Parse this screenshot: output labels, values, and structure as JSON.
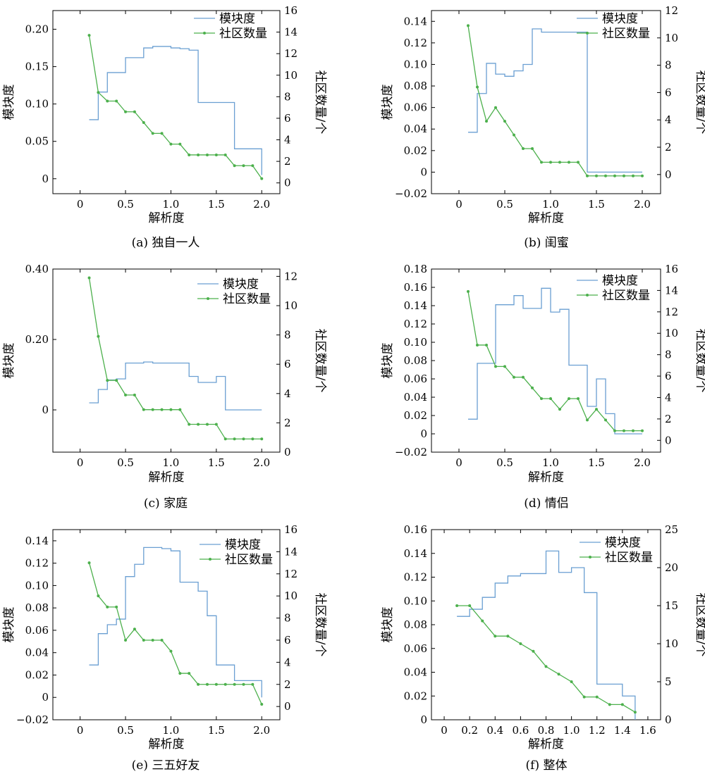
{
  "colors": {
    "modularity": "#6a9fd2",
    "communities": "#4cb04c",
    "axis": "#000000"
  },
  "chart_data": [
    {
      "type": "line",
      "caption": "(a) 独自一人",
      "xlabel": "解析度",
      "ylabel_left": "模块度",
      "ylabel_right": "社区数量/个",
      "xlim": [
        -0.3,
        2.2
      ],
      "ylim_left": [
        -0.02,
        0.225
      ],
      "ylim_right": [
        -1.0,
        16
      ],
      "xticks": [
        0,
        0.5,
        1.0,
        1.5,
        2.0
      ],
      "xtick_labels": [
        "0",
        "0.5",
        "1.0",
        "1.5",
        "2.0"
      ],
      "yticks_left": [
        0,
        0.05,
        0.1,
        0.15,
        0.2
      ],
      "ytick_labels_left": [
        "0",
        "0.05",
        "0.10",
        "0.15",
        "0.20"
      ],
      "yticks_right": [
        0,
        2,
        4,
        6,
        8,
        10,
        12,
        14,
        16
      ],
      "ytick_labels_right": [
        "0",
        "2",
        "4",
        "6",
        "8",
        "10",
        "12",
        "14",
        "16"
      ],
      "legend": [
        "模块度",
        "社区数量"
      ],
      "x": [
        0.1,
        0.2,
        0.3,
        0.4,
        0.5,
        0.6,
        0.7,
        0.8,
        0.9,
        1.0,
        1.1,
        1.2,
        1.3,
        1.4,
        1.5,
        1.6,
        1.7,
        1.8,
        1.9,
        2.0
      ],
      "series": [
        {
          "name": "模块度",
          "style": "step",
          "axis": "left",
          "values": [
            0.079,
            0.116,
            0.142,
            0.142,
            0.162,
            0.162,
            0.175,
            0.177,
            0.177,
            0.175,
            0.174,
            0.172,
            0.102,
            0.102,
            0.102,
            0.102,
            0.04,
            0.04,
            0.04,
            0.005
          ]
        },
        {
          "name": "社区数量",
          "style": "line-marker",
          "axis": "right",
          "values": [
            13.7,
            8.4,
            7.6,
            7.6,
            6.6,
            6.6,
            5.6,
            4.6,
            4.6,
            3.6,
            3.6,
            2.6,
            2.6,
            2.6,
            2.6,
            2.6,
            1.6,
            1.6,
            1.6,
            0.4
          ]
        }
      ]
    },
    {
      "type": "line",
      "caption": "(b) 闺蜜",
      "xlabel": "解析度",
      "ylabel_left": "模块度",
      "ylabel_right": "社区数量/个",
      "xlim": [
        -0.3,
        2.2
      ],
      "ylim_left": [
        -0.02,
        0.15
      ],
      "ylim_right": [
        -1.4,
        12
      ],
      "xticks": [
        0,
        0.5,
        1.0,
        1.5,
        2.0
      ],
      "xtick_labels": [
        "0",
        "0.5",
        "1.0",
        "1.5",
        "2.0"
      ],
      "yticks_left": [
        -0.02,
        0,
        0.02,
        0.04,
        0.06,
        0.08,
        0.1,
        0.12,
        0.14
      ],
      "ytick_labels_left": [
        "−0.02",
        "0",
        "0.02",
        "0.04",
        "0.06",
        "0.08",
        "0.10",
        "0.12",
        "0.14"
      ],
      "yticks_right": [
        0,
        2,
        4,
        6,
        8,
        10,
        12
      ],
      "ytick_labels_right": [
        "0",
        "2",
        "4",
        "6",
        "8",
        "10",
        "12"
      ],
      "legend": [
        "模块度",
        "社区数量"
      ],
      "x": [
        0.1,
        0.2,
        0.3,
        0.4,
        0.5,
        0.6,
        0.7,
        0.8,
        0.9,
        1.0,
        1.1,
        1.2,
        1.3,
        1.4,
        1.5,
        1.6,
        1.7,
        1.8,
        1.9,
        2.0
      ],
      "series": [
        {
          "name": "模块度",
          "style": "step",
          "axis": "left",
          "values": [
            0.037,
            0.073,
            0.101,
            0.091,
            0.089,
            0.094,
            0.1,
            0.133,
            0.13,
            0.13,
            0.13,
            0.13,
            0.13,
            0.0,
            0.0,
            0.0,
            0.0,
            0.0,
            0.0,
            0.0
          ]
        },
        {
          "name": "社区数量",
          "style": "line-marker",
          "axis": "right",
          "values": [
            10.9,
            6.4,
            3.9,
            4.9,
            3.9,
            2.9,
            1.9,
            1.9,
            0.9,
            0.9,
            0.9,
            0.9,
            0.9,
            -0.1,
            -0.1,
            -0.1,
            -0.1,
            -0.1,
            -0.1,
            -0.1
          ]
        }
      ]
    },
    {
      "type": "line",
      "caption": "(c) 家庭",
      "xlabel": "解析度",
      "ylabel_left": "模块度",
      "ylabel_right": "社区数量/个",
      "xlim": [
        -0.3,
        2.2
      ],
      "ylim_left": [
        -0.12,
        0.4
      ],
      "ylim_right": [
        0,
        12.5
      ],
      "xticks": [
        0,
        0.5,
        1.0,
        1.5,
        2.0
      ],
      "xtick_labels": [
        "0",
        "0.5",
        "1.0",
        "1.5",
        "2.0"
      ],
      "yticks_left": [
        0,
        0.2,
        0.4
      ],
      "ytick_labels_left": [
        "0",
        "0.20",
        "0.40"
      ],
      "yticks_right": [
        0,
        2,
        4,
        6,
        8,
        10,
        12
      ],
      "ytick_labels_right": [
        "0",
        "2",
        "4",
        "6",
        "8",
        "10",
        "12"
      ],
      "legend": [
        "模块度",
        "社区数量"
      ],
      "x": [
        0.1,
        0.2,
        0.3,
        0.4,
        0.5,
        0.6,
        0.7,
        0.8,
        0.9,
        1.0,
        1.1,
        1.2,
        1.3,
        1.4,
        1.5,
        1.6,
        1.7,
        1.8,
        1.9,
        2.0
      ],
      "series": [
        {
          "name": "模块度",
          "style": "step",
          "axis": "left",
          "values": [
            0.02,
            0.058,
            0.085,
            0.088,
            0.133,
            0.133,
            0.136,
            0.133,
            0.133,
            0.133,
            0.133,
            0.095,
            0.078,
            0.078,
            0.095,
            0.0,
            0.0,
            0.0,
            0.0,
            0.0
          ]
        },
        {
          "name": "社区数量",
          "style": "line-marker",
          "axis": "right",
          "values": [
            11.9,
            7.9,
            4.9,
            4.9,
            3.9,
            3.9,
            2.9,
            2.9,
            2.9,
            2.9,
            2.9,
            1.9,
            1.9,
            1.9,
            1.9,
            0.9,
            0.9,
            0.9,
            0.9,
            0.9
          ]
        }
      ]
    },
    {
      "type": "line",
      "caption": "(d) 情侣",
      "xlabel": "解析度",
      "ylabel_left": "模块度",
      "ylabel_right": "社区数量/个",
      "xlim": [
        -0.3,
        2.2
      ],
      "ylim_left": [
        -0.02,
        0.18
      ],
      "ylim_right": [
        -1.1,
        16
      ],
      "xticks": [
        0,
        0.5,
        1.0,
        1.5,
        2.0
      ],
      "xtick_labels": [
        "0",
        "0.5",
        "1.0",
        "1.5",
        "2.0"
      ],
      "yticks_left": [
        -0.02,
        0,
        0.02,
        0.04,
        0.06,
        0.08,
        0.1,
        0.12,
        0.14,
        0.16,
        0.18
      ],
      "ytick_labels_left": [
        "−0.02",
        "0",
        "0.02",
        "0.04",
        "0.06",
        "0.08",
        "0.10",
        "0.12",
        "0.14",
        "0.16",
        "0.18"
      ],
      "yticks_right": [
        0,
        2,
        4,
        6,
        8,
        10,
        12,
        14,
        16
      ],
      "ytick_labels_right": [
        "0",
        "2",
        "4",
        "6",
        "8",
        "10",
        "12",
        "14",
        "16"
      ],
      "legend": [
        "模块度",
        "社区数量"
      ],
      "x": [
        0.1,
        0.2,
        0.3,
        0.4,
        0.5,
        0.6,
        0.7,
        0.8,
        0.9,
        1.0,
        1.1,
        1.2,
        1.3,
        1.4,
        1.5,
        1.6,
        1.7,
        1.8,
        1.9,
        2.0
      ],
      "series": [
        {
          "name": "模块度",
          "style": "step",
          "axis": "left",
          "values": [
            0.016,
            0.077,
            0.077,
            0.141,
            0.141,
            0.151,
            0.137,
            0.137,
            0.159,
            0.133,
            0.136,
            0.075,
            0.075,
            0.03,
            0.06,
            0.022,
            0.0,
            0.0,
            0.0,
            0.0
          ]
        },
        {
          "name": "社区数量",
          "style": "line-marker",
          "axis": "right",
          "values": [
            13.9,
            8.9,
            8.9,
            6.9,
            6.9,
            5.9,
            5.9,
            4.9,
            3.9,
            3.9,
            2.9,
            3.9,
            3.9,
            1.9,
            2.9,
            1.9,
            0.9,
            0.9,
            0.9,
            0.9
          ]
        }
      ]
    },
    {
      "type": "line",
      "caption": "(e) 三五好友",
      "xlabel": "解析度",
      "ylabel_left": "模块度",
      "ylabel_right": "社区数量/个",
      "xlim": [
        -0.3,
        2.2
      ],
      "ylim_left": [
        -0.02,
        0.15
      ],
      "ylim_right": [
        -1.2,
        16
      ],
      "xticks": [
        0,
        0.5,
        1.0,
        1.5,
        2.0
      ],
      "xtick_labels": [
        "0",
        "0.5",
        "1.0",
        "1.5",
        "2.0"
      ],
      "yticks_left": [
        -0.02,
        0,
        0.02,
        0.04,
        0.06,
        0.08,
        0.1,
        0.12,
        0.14
      ],
      "ytick_labels_left": [
        "−0.02",
        "0",
        "0.02",
        "0.04",
        "0.06",
        "0.08",
        "0.10",
        "0.12",
        "0.14"
      ],
      "yticks_right": [
        0,
        2,
        4,
        6,
        8,
        10,
        12,
        14,
        16
      ],
      "ytick_labels_right": [
        "0",
        "2",
        "4",
        "6",
        "8",
        "10",
        "12",
        "14",
        "16"
      ],
      "legend": [
        "模块度",
        "社区数量"
      ],
      "x": [
        0.1,
        0.2,
        0.3,
        0.4,
        0.5,
        0.6,
        0.7,
        0.8,
        0.9,
        1.0,
        1.1,
        1.2,
        1.3,
        1.4,
        1.5,
        1.6,
        1.7,
        1.8,
        1.9,
        2.0
      ],
      "series": [
        {
          "name": "模块度",
          "style": "step",
          "axis": "left",
          "values": [
            0.029,
            0.057,
            0.065,
            0.07,
            0.108,
            0.119,
            0.134,
            0.134,
            0.133,
            0.131,
            0.103,
            0.103,
            0.095,
            0.073,
            0.029,
            0.029,
            0.015,
            0.015,
            0.015,
            0.0
          ]
        },
        {
          "name": "社区数量",
          "style": "line-marker",
          "axis": "right",
          "values": [
            13,
            10,
            9,
            9,
            6,
            7,
            6,
            6,
            6,
            5,
            3,
            3,
            2,
            2,
            2,
            2,
            2,
            2,
            2,
            0.2
          ]
        }
      ]
    },
    {
      "type": "line",
      "caption": "(f) 整体",
      "xlabel": "解析度",
      "ylabel_left": "模块度",
      "ylabel_right": "社区数量/个",
      "xlim": [
        -0.1,
        1.7
      ],
      "ylim_left": [
        0,
        0.16
      ],
      "ylim_right": [
        0,
        25
      ],
      "xticks": [
        0,
        0.2,
        0.4,
        0.6,
        0.8,
        1.0,
        1.2,
        1.4,
        1.6
      ],
      "xtick_labels": [
        "0",
        "0.2",
        "0.4",
        "0.6",
        "0.8",
        "1.0",
        "1.2",
        "1.4",
        "1.6"
      ],
      "yticks_left": [
        0,
        0.02,
        0.04,
        0.06,
        0.08,
        0.1,
        0.12,
        0.14,
        0.16
      ],
      "ytick_labels_left": [
        "0",
        "0.02",
        "0.04",
        "0.06",
        "0.08",
        "0.10",
        "0.12",
        "0.14",
        "0.16"
      ],
      "yticks_right": [
        0,
        5,
        10,
        15,
        20,
        25
      ],
      "ytick_labels_right": [
        "0",
        "5",
        "10",
        "15",
        "20",
        "25"
      ],
      "legend": [
        "模块度",
        "社区数量"
      ],
      "x": [
        0.1,
        0.2,
        0.3,
        0.4,
        0.5,
        0.6,
        0.7,
        0.8,
        0.9,
        1.0,
        1.1,
        1.2,
        1.3,
        1.4,
        1.5
      ],
      "series": [
        {
          "name": "模块度",
          "style": "step",
          "axis": "left",
          "values": [
            0.087,
            0.093,
            0.103,
            0.115,
            0.121,
            0.123,
            0.123,
            0.142,
            0.124,
            0.128,
            0.107,
            0.03,
            0.03,
            0.02,
            0.0
          ]
        },
        {
          "name": "社区数量",
          "style": "line-marker",
          "axis": "right",
          "values": [
            15,
            15,
            13,
            11,
            11,
            10,
            9,
            7,
            6,
            5,
            3,
            3,
            2,
            2,
            1
          ]
        }
      ]
    }
  ]
}
